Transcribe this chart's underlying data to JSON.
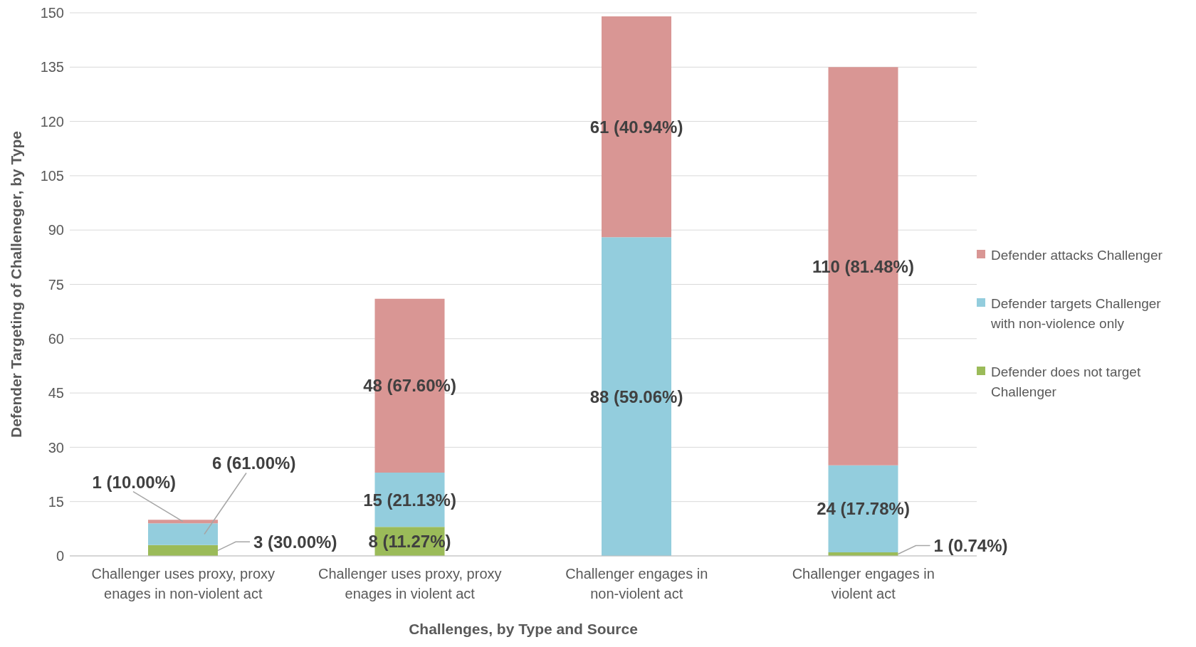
{
  "chart_data": {
    "type": "bar",
    "stacked": true,
    "xlabel": "Challenges, by Type and Source",
    "ylabel": "Defender Targeting of Challeneger, by Type",
    "categories": [
      "Challenger uses proxy, proxy enages in non-violent act",
      "Challenger uses proxy, proxy enages in violent act",
      "Challenger engages in non-violent act",
      "Challenger engages in violent act"
    ],
    "series": [
      {
        "name": "Defender does not target Challenger",
        "color": "#9bbb59",
        "values": [
          3,
          8,
          0,
          1
        ],
        "value_labels": [
          "3 (30.00%)",
          "8 (11.27%)",
          null,
          "1 (0.74%)"
        ]
      },
      {
        "name": "Defender targets Challenger with non-violence only",
        "color": "#93cddd",
        "values": [
          6,
          15,
          88,
          24
        ],
        "value_labels": [
          "6 (61.00%)",
          "15 (21.13%)",
          "88 (59.06%)",
          "24 (17.78%)"
        ]
      },
      {
        "name": "Defender attacks Challenger",
        "color": "#d99694",
        "values": [
          1,
          48,
          61,
          110
        ],
        "value_labels": [
          "1 (10.00%)",
          "48 (67.60%)",
          "61 (40.94%)",
          "110 (81.48%)"
        ]
      }
    ],
    "ylim": [
      0,
      150
    ],
    "yticks": [
      0,
      15,
      30,
      45,
      60,
      75,
      90,
      105,
      120,
      135,
      150
    ],
    "grid": "y",
    "legend": "right"
  }
}
